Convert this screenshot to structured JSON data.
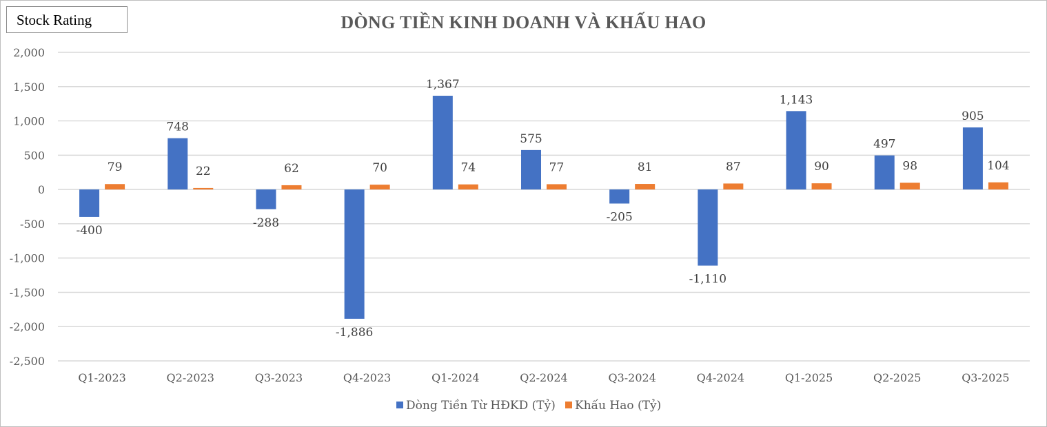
{
  "badge": "Stock Rating",
  "colors": {
    "cashflow": "#4472c4",
    "depreciation": "#ed7d31",
    "grid": "#d9d9d9"
  },
  "chart_data": {
    "type": "bar",
    "title": "DÒNG TIỀN KINH DOANH VÀ KHẤU HAO",
    "categories": [
      "Q1-2023",
      "Q2-2023",
      "Q3-2023",
      "Q4-2023",
      "Q1-2024",
      "Q2-2024",
      "Q3-2024",
      "Q4-2024",
      "Q1-2025",
      "Q2-2025",
      "Q3-2025"
    ],
    "series": [
      {
        "name": "Dòng Tiền Từ HĐKD (Tỷ)",
        "values": [
          -400,
          748,
          -288,
          -1886,
          1367,
          575,
          -205,
          -1110,
          1143,
          497,
          905
        ]
      },
      {
        "name": "Khấu Hao (Tỷ)",
        "values": [
          79,
          22,
          62,
          70,
          74,
          77,
          81,
          87,
          90,
          98,
          104
        ]
      }
    ],
    "ylim": [
      -2500,
      2000
    ],
    "yticks": [
      2000,
      1500,
      1000,
      500,
      0,
      -500,
      -1000,
      -1500,
      -2000,
      -2500
    ],
    "ytick_labels": [
      "2,000",
      "1,500",
      "1,000",
      "500",
      "0",
      "-500",
      "-1,000",
      "-1,500",
      "-2,000",
      "-2,500"
    ],
    "data_labels": [
      [
        "-400",
        "748",
        "-288",
        "-1,886",
        "1,367",
        "575",
        "-205",
        "-1,110",
        "1,143",
        "497",
        "905"
      ],
      [
        "79",
        "22",
        "62",
        "70",
        "74",
        "77",
        "81",
        "87",
        "90",
        "98",
        "104"
      ]
    ],
    "grid": true,
    "legend_position": "bottom"
  }
}
